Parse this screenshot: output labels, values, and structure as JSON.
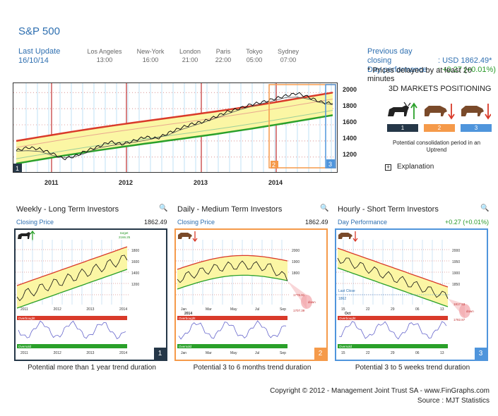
{
  "header": {
    "title": "S&P 500",
    "last_update_label": "Last Update",
    "last_update_date": "16/10/14",
    "cities": [
      {
        "name": "Los Angeles",
        "time": "13:00"
      },
      {
        "name": "New-York",
        "time": "16:00"
      },
      {
        "name": "London",
        "time": "21:00"
      },
      {
        "name": "Paris",
        "time": "22:00"
      },
      {
        "name": "Tokyo",
        "time": "05:00"
      },
      {
        "name": "Sydney",
        "time": "07:00"
      }
    ],
    "prev_close_label": "Previous day closing",
    "prev_close_value": ": USD 1862.49*",
    "day_perf_label": "Day performance",
    "day_perf_value": ": +0.27 (+0.01%)",
    "delay_note": "* Prices delayed by at least 20 minutes"
  },
  "positioning": {
    "title": "3D MARKETS POSITIONING",
    "boxes": [
      {
        "label": "1",
        "color": "#253748"
      },
      {
        "label": "2",
        "color": "#f59a4a"
      },
      {
        "label": "3",
        "color": "#4f95dc"
      }
    ],
    "note": "Potential consolidation period in an Uptrend",
    "explanation": "Explanation"
  },
  "panels": [
    {
      "title": "Weekly - Long Term Investors",
      "sub_label": "Closing Price",
      "sub_value": "1862.49",
      "caption": "Potential more than 1 year trend duration",
      "corner": "1",
      "color": "#253748",
      "x_ticks": [
        "2011",
        "2012",
        "2013",
        "2014"
      ],
      "y_ticks": [
        "1800",
        "1600",
        "1400",
        "1200"
      ],
      "top_annot": "2166.25",
      "top_annot2": "target",
      "overbought": "Overbought",
      "oversold": "Oversold"
    },
    {
      "title": "Daily - Medium Term Investors",
      "sub_label": "Closing Price",
      "sub_value": "1862.49",
      "caption": "Potential 3 to 6 months trend duration",
      "corner": "2",
      "color": "#f59a4a",
      "x_ticks": [
        "Jan",
        "Mar",
        "May",
        "Jul",
        "Sep"
      ],
      "x_year": "2014",
      "y_ticks": [
        "2000",
        "1900",
        "1800"
      ],
      "annot1": "1776.91",
      "annot2": "1707.39",
      "annot_mid": "down",
      "overbought": "Overbought",
      "oversold": "Oversold"
    },
    {
      "title": "Hourly - Short Term Investors",
      "sub_label": "Day Performance",
      "sub_value": "+0.27 (+0.01%)",
      "caption": "Potential 3 to 5 weeks trend duration",
      "corner": "3",
      "color": "#4f95dc",
      "x_ticks": [
        "15",
        "22",
        "29",
        "06",
        "13"
      ],
      "x_year": "Oct",
      "y_ticks": [
        "2000",
        "1950",
        "1900",
        "1850"
      ],
      "last_close_label": "Last Close",
      "last_close_value": "1862",
      "annot1": "1817.53",
      "annot2": "1782.87",
      "annot_mid": "down",
      "overbought": "Overbought",
      "oversold": "Oversold"
    }
  ],
  "footer": {
    "copyright": "Copyright © 2012 - Management Joint Trust SA - www.FinGraphs.com",
    "source": "Source : MJT Statistics"
  },
  "chart_data": {
    "type": "line",
    "title": "",
    "x_ticks": [
      "2011",
      "2012",
      "2013",
      "2014"
    ],
    "y_ticks": [
      2000,
      1800,
      1600,
      1400,
      1200
    ],
    "ylim": [
      1050,
      2080
    ],
    "corner_labels": [
      "1",
      "2",
      "3"
    ],
    "series": [
      {
        "name": "",
        "values": [
          1280,
          1320,
          1300,
          1250,
          1180,
          1210,
          1280,
          1330,
          1390,
          1360,
          1400,
          1450,
          1430,
          1500,
          1560,
          1610,
          1640,
          1700,
          1760,
          1800,
          1850,
          1880,
          1920,
          1960,
          1990,
          1940,
          1880,
          1862
        ]
      }
    ]
  }
}
